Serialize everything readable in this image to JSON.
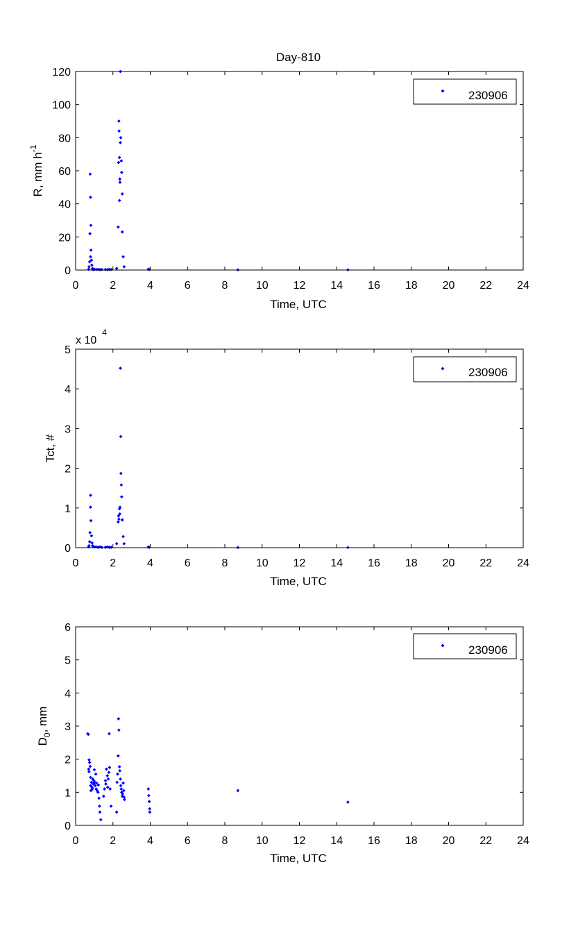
{
  "figure": {
    "title": "Day-810"
  },
  "colors": {
    "marker": "#0000ff",
    "axis": "#000000",
    "background": "#ffffff"
  },
  "chart_data": [
    {
      "type": "scatter",
      "ylabel_main": "R, mm h",
      "ylabel_sup": "-1",
      "xlabel": "Time, UTC",
      "xlim": [
        0,
        24
      ],
      "ylim": [
        0,
        120
      ],
      "xticks": [
        0,
        2,
        4,
        6,
        8,
        10,
        12,
        14,
        16,
        18,
        20,
        22,
        24
      ],
      "yticks": [
        0,
        20,
        40,
        60,
        80,
        100,
        120
      ],
      "legend": "top-right",
      "grid": false,
      "series": [
        {
          "name": "230906",
          "x": [
            0.7,
            0.72,
            0.75,
            0.77,
            0.78,
            0.8,
            0.8,
            0.82,
            0.82,
            0.85,
            0.87,
            0.9,
            0.92,
            0.95,
            1.0,
            1.1,
            1.2,
            1.3,
            1.4,
            1.6,
            1.7,
            1.8,
            1.9,
            2.2,
            2.28,
            2.3,
            2.32,
            2.33,
            2.35,
            2.35,
            2.37,
            2.38,
            2.4,
            2.4,
            2.42,
            2.45,
            2.47,
            2.5,
            2.5,
            2.55,
            2.6,
            3.9,
            3.95,
            8.7,
            14.6
          ],
          "y": [
            0.5,
            2,
            5,
            22,
            58,
            44,
            8,
            12,
            27,
            6,
            3,
            1,
            0.5,
            0.3,
            0.5,
            0.3,
            0.4,
            0.2,
            0.3,
            0.3,
            0.2,
            0.4,
            0.3,
            1,
            26,
            65,
            90,
            84,
            68,
            42,
            55,
            53,
            120,
            77,
            80,
            66,
            59,
            46,
            23,
            8,
            2,
            0.5,
            0.3,
            0.1,
            0.1
          ]
        }
      ]
    },
    {
      "type": "scatter",
      "ylabel": "Tct, #",
      "xlabel": "Time, UTC",
      "exponent_main": "x 10",
      "exponent_sup": "4",
      "xlim": [
        0,
        24
      ],
      "ylim": [
        0,
        5
      ],
      "xticks": [
        0,
        2,
        4,
        6,
        8,
        10,
        12,
        14,
        16,
        18,
        20,
        22,
        24
      ],
      "yticks": [
        0,
        1,
        2,
        3,
        4,
        5
      ],
      "legend": "top-right",
      "grid": false,
      "series": [
        {
          "name": "230906",
          "x": [
            0.7,
            0.72,
            0.75,
            0.77,
            0.8,
            0.8,
            0.82,
            0.85,
            0.88,
            0.9,
            0.95,
            1.0,
            1.1,
            1.2,
            1.3,
            1.4,
            1.6,
            1.7,
            1.8,
            1.9,
            2.2,
            2.28,
            2.3,
            2.32,
            2.35,
            2.37,
            2.38,
            2.4,
            2.42,
            2.43,
            2.45,
            2.47,
            2.5,
            2.5,
            2.55,
            2.6,
            3.9,
            3.95,
            8.7,
            14.6
          ],
          "y": [
            0.02,
            0.05,
            0.15,
            0.38,
            1.32,
            1.02,
            0.68,
            0.3,
            0.12,
            0.05,
            0.03,
            0.02,
            0.02,
            0.01,
            0.02,
            0.01,
            0.01,
            0.02,
            0.01,
            0.01,
            0.1,
            0.65,
            0.8,
            0.72,
            0.98,
            0.85,
            1.02,
            4.52,
            2.8,
            1.87,
            1.58,
            1.28,
            0.7,
            0.7,
            0.28,
            0.1,
            0.02,
            0.01,
            0.005,
            0.005
          ]
        }
      ]
    },
    {
      "type": "scatter",
      "ylabel_main": "D",
      "ylabel_sub": "0",
      "ylabel_rest": ", mm",
      "xlabel": "Time, UTC",
      "xlim": [
        0,
        24
      ],
      "ylim": [
        0,
        6
      ],
      "xticks": [
        0,
        2,
        4,
        6,
        8,
        10,
        12,
        14,
        16,
        18,
        20,
        22,
        24
      ],
      "yticks": [
        0,
        1,
        2,
        3,
        4,
        5,
        6
      ],
      "legend": "top-right",
      "grid": false,
      "series": [
        {
          "name": "230906",
          "x": [
            0.65,
            0.68,
            0.7,
            0.72,
            0.72,
            0.75,
            0.78,
            0.8,
            0.8,
            0.82,
            0.85,
            0.88,
            0.9,
            0.92,
            0.95,
            0.98,
            1.0,
            1.02,
            1.05,
            1.08,
            1.1,
            1.12,
            1.15,
            1.2,
            1.22,
            1.25,
            1.28,
            1.3,
            1.35,
            1.5,
            1.55,
            1.6,
            1.62,
            1.65,
            1.7,
            1.72,
            1.75,
            1.78,
            1.8,
            1.82,
            1.85,
            1.9,
            2.2,
            2.22,
            2.25,
            2.28,
            2.3,
            2.32,
            2.35,
            2.37,
            2.4,
            2.42,
            2.45,
            2.47,
            2.5,
            2.52,
            2.55,
            2.58,
            2.6,
            2.62,
            3.9,
            3.92,
            3.95,
            3.97,
            3.98,
            8.7,
            14.6
          ],
          "y": [
            2.77,
            2.75,
            1.7,
            1.98,
            1.62,
            1.9,
            1.78,
            1.45,
            1.2,
            1.05,
            1.3,
            1.15,
            1.1,
            1.4,
            1.25,
            1.35,
            1.68,
            1.3,
            1.2,
            1.55,
            1.1,
            1.28,
            1.05,
            1.0,
            1.22,
            0.82,
            0.58,
            0.4,
            0.17,
            0.88,
            1.1,
            1.35,
            1.25,
            1.7,
            1.5,
            1.15,
            1.4,
            1.6,
            2.77,
            1.75,
            1.1,
            0.58,
            0.4,
            1.3,
            1.55,
            2.1,
            3.22,
            2.88,
            1.77,
            1.65,
            1.4,
            1.2,
            1.1,
            1.0,
            0.88,
            0.95,
            1.28,
            1.05,
            0.85,
            0.78,
            1.1,
            0.9,
            0.72,
            0.5,
            0.4,
            1.05,
            0.7
          ]
        }
      ]
    }
  ]
}
